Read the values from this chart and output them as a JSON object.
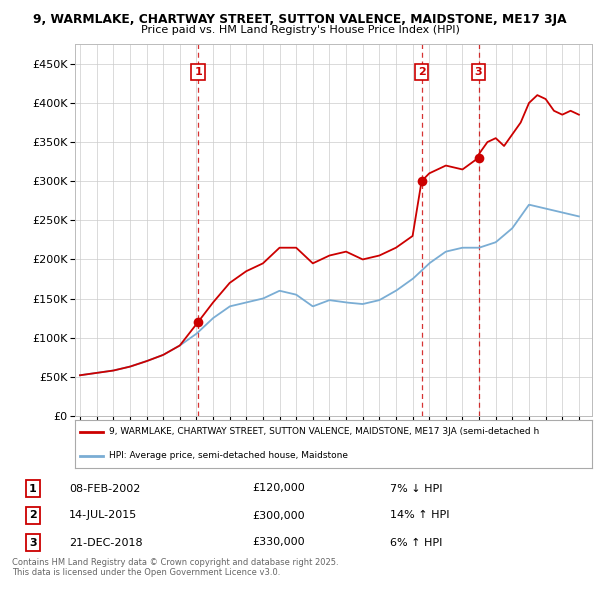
{
  "title_line1": "9, WARMLAKE, CHARTWAY STREET, SUTTON VALENCE, MAIDSTONE, ME17 3JA",
  "title_line2": "Price paid vs. HM Land Registry's House Price Index (HPI)",
  "ylim": [
    0,
    475000
  ],
  "yticks": [
    0,
    50000,
    100000,
    150000,
    200000,
    250000,
    300000,
    350000,
    400000,
    450000
  ],
  "ytick_labels": [
    "£0",
    "£50K",
    "£100K",
    "£150K",
    "£200K",
    "£250K",
    "£300K",
    "£350K",
    "£400K",
    "£450K"
  ],
  "property_color": "#cc0000",
  "hpi_color": "#7aadd4",
  "sale_points": [
    {
      "date_num": 2002.1,
      "price": 120000,
      "label": "1"
    },
    {
      "date_num": 2015.54,
      "price": 300000,
      "label": "2"
    },
    {
      "date_num": 2018.97,
      "price": 330000,
      "label": "3"
    }
  ],
  "vline_dates": [
    2002.1,
    2015.54,
    2018.97
  ],
  "legend_property": "9, WARMLAKE, CHARTWAY STREET, SUTTON VALENCE, MAIDSTONE, ME17 3JA (semi-detached h",
  "legend_hpi": "HPI: Average price, semi-detached house, Maidstone",
  "table_rows": [
    {
      "num": "1",
      "date": "08-FEB-2002",
      "price": "£120,000",
      "change": "7% ↓ HPI"
    },
    {
      "num": "2",
      "date": "14-JUL-2015",
      "price": "£300,000",
      "change": "14% ↑ HPI"
    },
    {
      "num": "3",
      "date": "21-DEC-2018",
      "price": "£330,000",
      "change": "6% ↑ HPI"
    }
  ],
  "footnote": "Contains HM Land Registry data © Crown copyright and database right 2025.\nThis data is licensed under the Open Government Licence v3.0.",
  "background_color": "#ffffff",
  "grid_color": "#cccccc",
  "xlim_left": 1994.7,
  "xlim_right": 2025.8
}
